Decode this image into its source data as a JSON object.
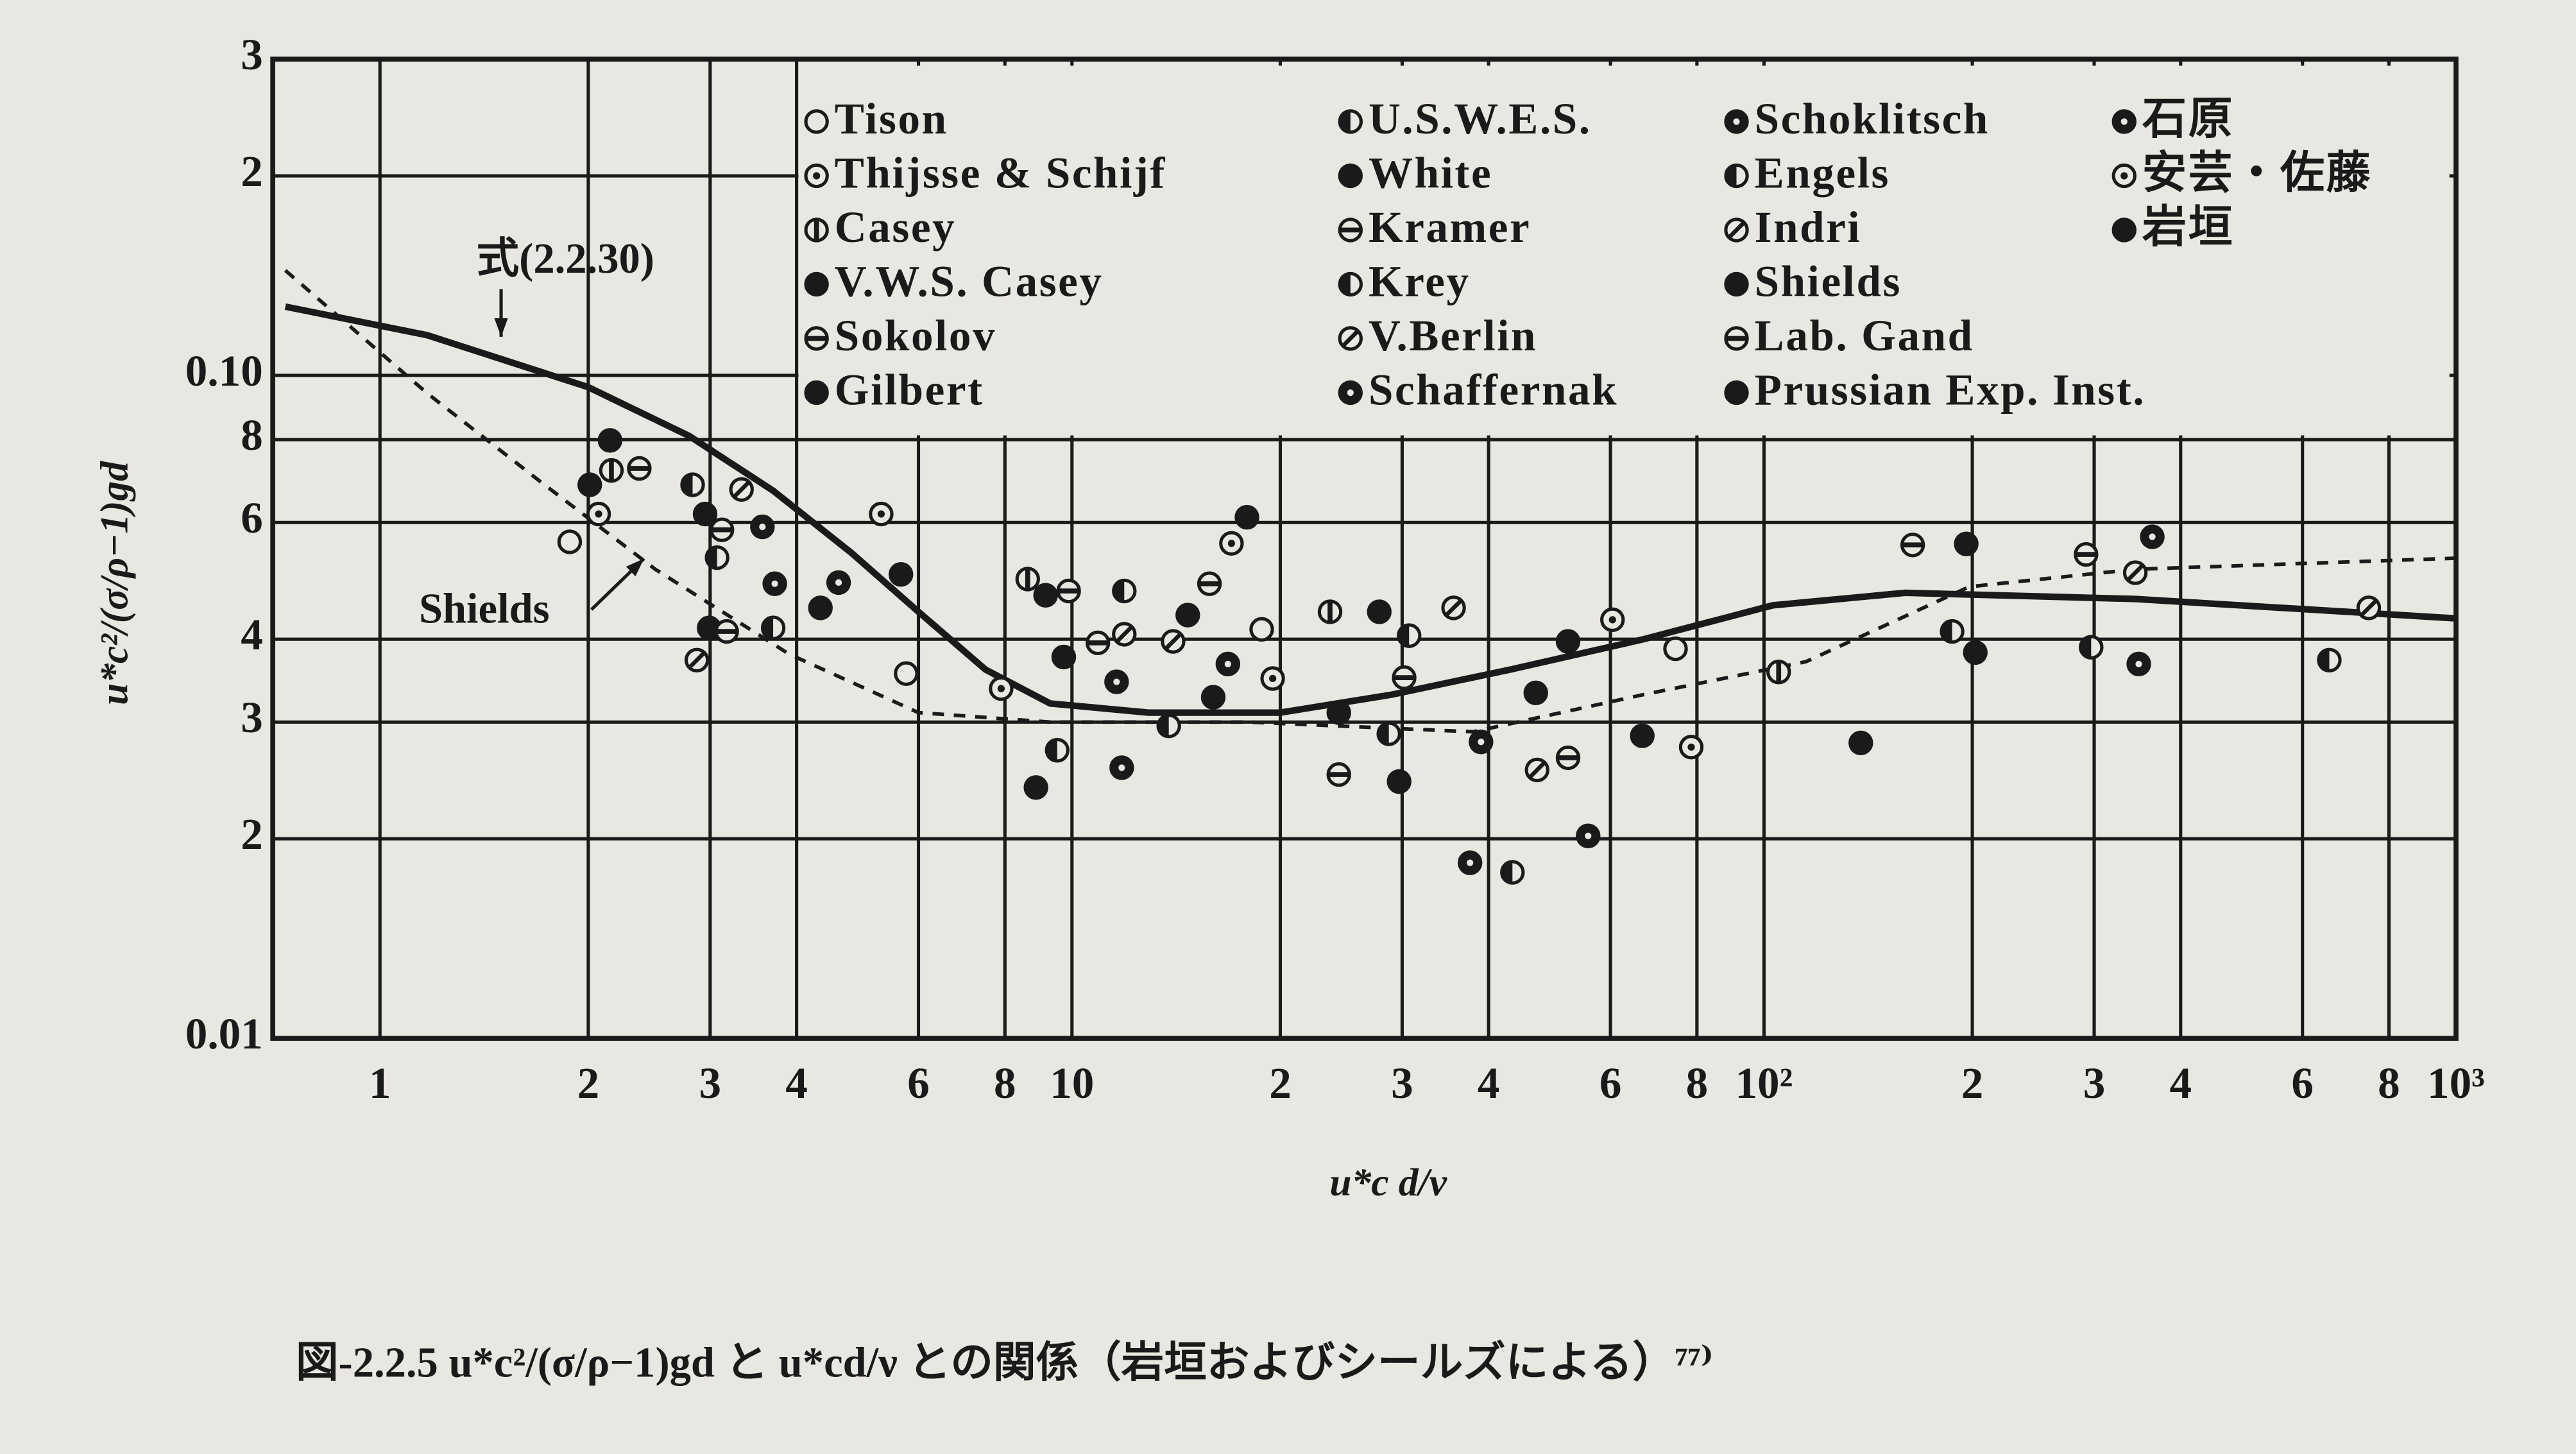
{
  "chart_data": {
    "type": "scatter",
    "xscale": "log",
    "yscale": "log",
    "grid": true,
    "xlabel": "u*c d/ν",
    "ylabel": "u*c²/(σ/ρ−1)gd",
    "caption": "図-2.2.5  u*c²/(σ/ρ−1)gd と u*cd/ν との関係（岩垣およびシールズによる）⁷⁷⁾",
    "xlim": [
      0.7,
      1000
    ],
    "ylim": [
      0.01,
      0.3
    ],
    "xticks": [
      1,
      2,
      3,
      4,
      6,
      8,
      10,
      {
        "value": 20,
        "label": "2"
      },
      {
        "value": 30,
        "label": "3"
      },
      {
        "value": 40,
        "label": "4"
      },
      {
        "value": 60,
        "label": "6"
      },
      {
        "value": 80,
        "label": "8"
      },
      {
        "value": 100,
        "label": "10²"
      },
      {
        "value": 200,
        "label": "2"
      },
      {
        "value": 300,
        "label": "3"
      },
      {
        "value": 400,
        "label": "4"
      },
      {
        "value": 600,
        "label": "6"
      },
      {
        "value": 800,
        "label": "8"
      },
      {
        "value": 1000,
        "label": "10³"
      }
    ],
    "yticks": [
      0.01,
      {
        "value": 0.02,
        "label": "2"
      },
      {
        "value": 0.03,
        "label": "3"
      },
      {
        "value": 0.04,
        "label": "4"
      },
      {
        "value": 0.06,
        "label": "6"
      },
      {
        "value": 0.08,
        "label": "8"
      },
      {
        "value": 0.1,
        "label": "0.10"
      },
      {
        "value": 0.2,
        "label": "2"
      },
      {
        "value": 0.3,
        "label": "3"
      }
    ],
    "color": "#1a1a1a",
    "series": [
      {
        "name": "Tison",
        "marker": "open",
        "x": [
          1.88,
          5.76,
          18.8,
          74.5
        ],
        "values": [
          0.0561,
          0.0355,
          0.0414,
          0.0387
        ]
      },
      {
        "name": "Thijsse & Schijf",
        "marker": "dot",
        "x": [
          2.07,
          7.9,
          19.5,
          78.5
        ],
        "values": [
          0.0618,
          0.0337,
          0.0349,
          0.0275
        ]
      },
      {
        "name": "Casey",
        "marker": "vbar",
        "x": [
          2.16,
          8.63,
          23.6,
          105
        ],
        "values": [
          0.0719,
          0.0493,
          0.044,
          0.0357
        ]
      },
      {
        "name": "V.W.S. Casey",
        "marker": "filled",
        "x": [
          2.01,
          9.16,
          24.3,
          138
        ],
        "values": [
          0.0684,
          0.0466,
          0.031,
          0.0279
        ]
      },
      {
        "name": "Sokolov",
        "marker": "hbar",
        "x": [
          2.37,
          9.89,
          24.3,
          164
        ],
        "values": [
          0.0724,
          0.0473,
          0.025,
          0.0555
        ]
      },
      {
        "name": "Gilbert",
        "marker": "filled",
        "x": [
          2.15,
          8.87,
          27.8,
          196
        ],
        "values": [
          0.0798,
          0.0239,
          0.044,
          0.0557
        ]
      },
      {
        "name": "U.S.W.E.S.",
        "marker": "half",
        "x": [
          2.83,
          9.52,
          28.7,
          187
        ],
        "values": [
          0.0684,
          0.0272,
          0.0288,
          0.0411
        ]
      },
      {
        "name": "White",
        "marker": "filled",
        "x": [
          2.95,
          9.73,
          29.7,
          202
        ],
        "values": [
          0.0618,
          0.0376,
          0.0244,
          0.0382
        ]
      },
      {
        "name": "Kramer",
        "marker": "hbar",
        "x": [
          3.12,
          10.9,
          30.2,
          292
        ],
        "values": [
          0.0585,
          0.0395,
          0.035,
          0.0537
        ]
      },
      {
        "name": "Krey",
        "marker": "half",
        "x": [
          3.07,
          11.9,
          30.7,
          297
        ],
        "values": [
          0.0531,
          0.0473,
          0.0405,
          0.0389
        ]
      },
      {
        "name": "V.Berlin",
        "marker": "slash",
        "x": [
          3.33,
          11.9,
          35.6,
          344
        ],
        "values": [
          0.0673,
          0.0407,
          0.0446,
          0.0504
        ]
      },
      {
        "name": "Schaffernak",
        "marker": "ring",
        "x": [
          3.57,
          11.6,
          37.6,
          364
        ],
        "values": [
          0.0591,
          0.0345,
          0.0184,
          0.0571
        ]
      },
      {
        "name": "Schoklitsch",
        "marker": "ring",
        "x": [
          3.72,
          11.8,
          39.0,
          348
        ],
        "values": [
          0.0485,
          0.0256,
          0.028,
          0.0367
        ]
      },
      {
        "name": "Engels",
        "marker": "half",
        "x": [
          3.7,
          13.8,
          43.3,
          656
        ],
        "values": [
          0.0416,
          0.0296,
          0.0178,
          0.0372
        ]
      },
      {
        "name": "Indri",
        "marker": "slash",
        "x": [
          2.87,
          14.0,
          47.0,
          748
        ],
        "values": [
          0.0372,
          0.0397,
          0.0254,
          0.0446
        ]
      },
      {
        "name": "Shields",
        "marker": "filled",
        "x": [
          2.99,
          14.7,
          46.8
        ],
        "values": [
          0.0416,
          0.0435,
          0.0332
        ]
      },
      {
        "name": "Lab. Gand",
        "marker": "hbar",
        "x": [
          3.17,
          15.8,
          52.1
        ],
        "values": [
          0.0411,
          0.0485,
          0.0265
        ]
      },
      {
        "name": "Prussian Exp. Inst.",
        "marker": "filled",
        "x": [
          4.33,
          16.0,
          52.1
        ],
        "values": [
          0.0446,
          0.0327,
          0.0397
        ]
      },
      {
        "name": "石原",
        "marker": "ring",
        "x": [
          4.6,
          16.8,
          55.7
        ],
        "values": [
          0.0487,
          0.0367,
          0.0202
        ]
      },
      {
        "name": "安芸・佐藤",
        "marker": "dot",
        "x": [
          5.3,
          17.0,
          60.4
        ],
        "values": [
          0.0618,
          0.0558,
          0.0428
        ]
      },
      {
        "name": "岩垣",
        "marker": "filled",
        "x": [
          5.66,
          17.9,
          66.7
        ],
        "values": [
          0.0501,
          0.0611,
          0.0286
        ]
      }
    ],
    "curves": [
      {
        "name": "式(2.2.30)",
        "style": "solid",
        "x": [
          0.73,
          1.17,
          2.0,
          2.8,
          3.7,
          4.8,
          6.0,
          7.5,
          9.3,
          12.9,
          20,
          29,
          43,
          67,
          103,
          160,
          344,
          1000
        ],
        "values": [
          0.127,
          0.115,
          0.096,
          0.081,
          0.067,
          0.054,
          0.044,
          0.036,
          0.032,
          0.031,
          0.031,
          0.033,
          0.036,
          0.04,
          0.045,
          0.047,
          0.046,
          0.043
        ]
      },
      {
        "name": "Shields",
        "style": "dashed",
        "x": [
          0.73,
          1.17,
          1.71,
          2.5,
          3.9,
          6.0,
          9.3,
          18,
          38,
          67,
          115,
          198,
          344,
          1000
        ],
        "values": [
          0.144,
          0.094,
          0.069,
          0.051,
          0.038,
          0.031,
          0.03,
          0.03,
          0.029,
          0.033,
          0.037,
          0.048,
          0.051,
          0.053
        ]
      }
    ]
  }
}
